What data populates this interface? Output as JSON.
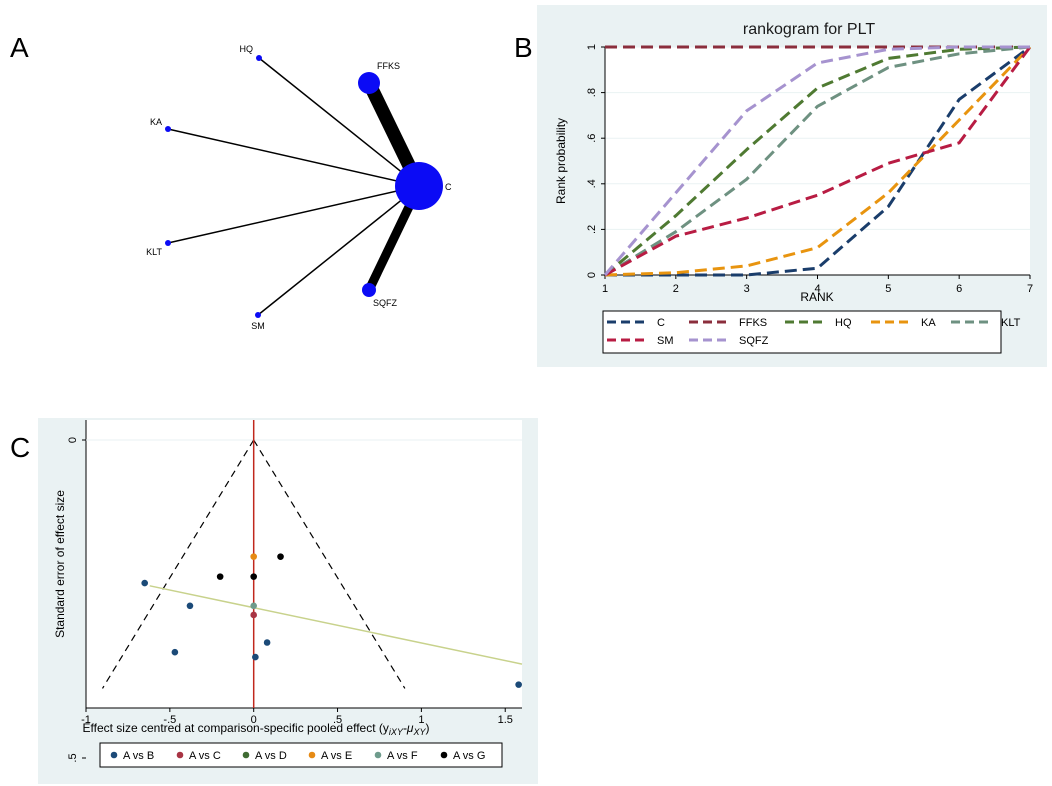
{
  "panels": {
    "a": {
      "letter": "A"
    },
    "b": {
      "letter": "B"
    },
    "c": {
      "letter": "C"
    }
  },
  "colors": {
    "panel_bg": "#eaf2f3",
    "node_fill": "#0b0bf5",
    "red_line": "#c0281d",
    "fit_line": "#c8d28c"
  },
  "chart_data": [
    {
      "type": "network",
      "panel": "A",
      "nodes": [
        {
          "label": "HQ",
          "size": "small"
        },
        {
          "label": "FFKS",
          "size": "medium"
        },
        {
          "label": "KA",
          "size": "small"
        },
        {
          "label": "C",
          "size": "large"
        },
        {
          "label": "KLT",
          "size": "small"
        },
        {
          "label": "SQFZ",
          "size": "medium-small"
        },
        {
          "label": "SM",
          "size": "small"
        }
      ],
      "edges": [
        {
          "from": "HQ",
          "to": "C",
          "weight": 1
        },
        {
          "from": "FFKS",
          "to": "C",
          "weight": 9
        },
        {
          "from": "KA",
          "to": "C",
          "weight": 1
        },
        {
          "from": "KLT",
          "to": "C",
          "weight": 1
        },
        {
          "from": "SQFZ",
          "to": "C",
          "weight": 6
        },
        {
          "from": "SM",
          "to": "C",
          "weight": 1
        }
      ]
    },
    {
      "type": "line",
      "panel": "B",
      "title": "rankogram for PLT",
      "xlabel": "RANK",
      "ylabel": "Rank probability",
      "x": [
        1,
        2,
        3,
        4,
        5,
        6,
        7
      ],
      "xlim": [
        1,
        7
      ],
      "ylim": [
        0,
        1
      ],
      "yticks": [
        0,
        0.2,
        0.4,
        0.6,
        0.8,
        1
      ],
      "ytick_labels": [
        "0",
        ".2",
        ".4",
        ".6",
        ".8",
        "1"
      ],
      "xtick_labels": [
        "1",
        "2",
        "3",
        "4",
        "5",
        "6",
        "7"
      ],
      "grid": true,
      "legend_position": "bottom",
      "series": [
        {
          "name": "C",
          "color": "#1a3d6b",
          "values": [
            0,
            0,
            0,
            0.03,
            0.3,
            0.77,
            1
          ]
        },
        {
          "name": "FFKS",
          "color": "#8b2e3c",
          "values": [
            1,
            1,
            1,
            1,
            1,
            1,
            1
          ]
        },
        {
          "name": "HQ",
          "color": "#4f7a32",
          "values": [
            0,
            0.26,
            0.55,
            0.82,
            0.95,
            0.99,
            1
          ]
        },
        {
          "name": "KA",
          "color": "#e8940f",
          "values": [
            0,
            0.01,
            0.04,
            0.12,
            0.36,
            0.68,
            1
          ]
        },
        {
          "name": "KLT",
          "color": "#6e9181",
          "values": [
            0,
            0.19,
            0.42,
            0.74,
            0.91,
            0.97,
            1
          ]
        },
        {
          "name": "SM",
          "color": "#b81c43",
          "values": [
            0,
            0.17,
            0.25,
            0.35,
            0.49,
            0.58,
            1
          ]
        },
        {
          "name": "SQFZ",
          "color": "#a693cf",
          "values": [
            0,
            0.36,
            0.72,
            0.93,
            0.99,
            1,
            1
          ]
        }
      ]
    },
    {
      "type": "scatter",
      "panel": "C",
      "xlabel": "Effect size centred at comparison-specific pooled effect (y",
      "xlabel_sub1": "iXY",
      "xlabel_mid": "-μ",
      "xlabel_sub2": "XY",
      "xlabel_end": ")",
      "ylabel": "Standard error of effect size",
      "xlim": [
        -1,
        1.6
      ],
      "xticks": [
        -1,
        -0.5,
        0,
        0.5,
        1,
        1.5
      ],
      "xtick_labels": [
        "-1",
        "-.5",
        "0",
        ".5",
        "1",
        "1.5"
      ],
      "ylim": [
        0,
        0.5
      ],
      "ytick_labels": [
        "0",
        ".5"
      ],
      "legend_position": "bottom",
      "series": [
        {
          "name": "A vs B",
          "color": "#1b4a78",
          "points": [
            [
              -0.65,
              0.265
            ],
            [
              -0.38,
              0.307
            ],
            [
              0.08,
              0.375
            ],
            [
              -0.47,
              0.393
            ],
            [
              0.01,
              0.402
            ],
            [
              1.58,
              0.453
            ]
          ]
        },
        {
          "name": "A vs C",
          "color": "#a83444",
          "points": [
            [
              0,
              0.324
            ]
          ]
        },
        {
          "name": "A vs D",
          "color": "#3f6b32",
          "points": []
        },
        {
          "name": "A vs E",
          "color": "#e68a14",
          "points": [
            [
              0,
              0.216
            ]
          ]
        },
        {
          "name": "A vs F",
          "color": "#6e9b8c",
          "points": [
            [
              0,
              0.307
            ]
          ]
        },
        {
          "name": "A vs G",
          "color": "#000000",
          "points": [
            [
              -0.2,
              0.253
            ],
            [
              0,
              0.253
            ],
            [
              0.16,
              0.216
            ]
          ]
        }
      ],
      "reference_line": {
        "x": 0,
        "color": "#c0281d"
      },
      "funnel_se_max": 0.46,
      "fit_line": {
        "x1": -0.62,
        "y1": 0.27,
        "x2": 1.6,
        "y2": 0.415
      }
    }
  ]
}
